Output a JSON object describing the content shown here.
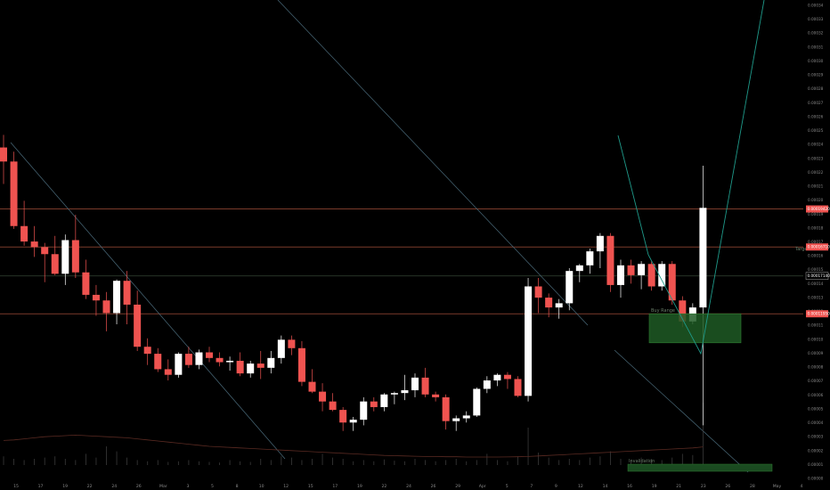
{
  "colors": {
    "background": "#000000",
    "up": "#ffffff",
    "down": "#ef5350",
    "hline": "#7a3b2a",
    "trendline": "#4a6a7a",
    "projection": "#1f9a8a",
    "box_fill": "#1e5b25",
    "box_border": "#2e7d32",
    "volume": "#3a3a3a",
    "ma": "#5a2a22"
  },
  "chart_data": {
    "type": "candlestick",
    "title": "",
    "xlabel": "",
    "ylabel": "",
    "x_ticks": [
      "15",
      "17",
      "19",
      "22",
      "24",
      "26",
      "Mar",
      "3",
      "5",
      "8",
      "10",
      "12",
      "15",
      "17",
      "19",
      "22",
      "24",
      "26",
      "29",
      "Apr",
      "5",
      "7",
      "9",
      "12",
      "14",
      "16",
      "19",
      "21",
      "23",
      "26",
      "28",
      "May",
      "4"
    ],
    "y_ticks": [
      "0.00034",
      "0.00033",
      "0.00032",
      "0.00031",
      "0.00030",
      "0.00029",
      "0.00028",
      "0.00027",
      "0.00026",
      "0.00025",
      "0.00024",
      "0.00023",
      "0.00022",
      "0.00021",
      "0.00020",
      "0.00019",
      "0.00018",
      "0.00017",
      "0.00016",
      "0.00015",
      "0.00014",
      "0.00013",
      "0.00012",
      "0.00011",
      "0.00010",
      "0.00009",
      "0.00008",
      "0.00007",
      "0.00006",
      "0.00005",
      "0.00004",
      "0.00003",
      "0.00002",
      "0.00001",
      "0.00000"
    ],
    "ylim": [
      -1e-06,
      0.0003431
    ],
    "price_tags": [
      {
        "value": "0.00019420",
        "color": "#ef5350"
      },
      {
        "value": "0.00016710",
        "color": "#ef5350"
      },
      {
        "value": "0.00011950",
        "color": "#ef5350"
      },
      {
        "value": "0.00017140",
        "color": "#ffffff"
      }
    ],
    "annotations": {
      "box_label": "Buy Range",
      "lower_label": "Invalidation",
      "side_label": "Target"
    },
    "candles": [
      {
        "o": 0.000238,
        "h": 0.000247,
        "l": 0.000212,
        "c": 0.000228
      },
      {
        "o": 0.000228,
        "h": 0.000235,
        "l": 0.00018,
        "c": 0.000182
      },
      {
        "o": 0.000182,
        "h": 0.0002,
        "l": 0.000168,
        "c": 0.000171
      },
      {
        "o": 0.000171,
        "h": 0.000182,
        "l": 0.00016,
        "c": 0.000167
      },
      {
        "o": 0.000167,
        "h": 0.00017,
        "l": 0.000142,
        "c": 0.000162
      },
      {
        "o": 0.000162,
        "h": 0.000175,
        "l": 0.000147,
        "c": 0.000148
      },
      {
        "o": 0.000148,
        "h": 0.000176,
        "l": 0.00014,
        "c": 0.000172
      },
      {
        "o": 0.000172,
        "h": 0.00019,
        "l": 0.000145,
        "c": 0.000149
      },
      {
        "o": 0.000149,
        "h": 0.000158,
        "l": 0.00013,
        "c": 0.000133
      },
      {
        "o": 0.000133,
        "h": 0.00014,
        "l": 0.000118,
        "c": 0.000129
      },
      {
        "o": 0.000129,
        "h": 0.000135,
        "l": 0.000107,
        "c": 0.00012
      },
      {
        "o": 0.00012,
        "h": 0.000144,
        "l": 0.000112,
        "c": 0.000143
      },
      {
        "o": 0.000143,
        "h": 0.00015,
        "l": 0.000112,
        "c": 0.000126
      },
      {
        "o": 0.000126,
        "h": 0.000136,
        "l": 9.3e-05,
        "c": 9.6e-05
      },
      {
        "o": 9.6e-05,
        "h": 0.000102,
        "l": 8.3e-05,
        "c": 9.1e-05
      },
      {
        "o": 9.1e-05,
        "h": 9.5e-05,
        "l": 7.8e-05,
        "c": 8e-05
      },
      {
        "o": 8e-05,
        "h": 8.7e-05,
        "l": 7.2e-05,
        "c": 7.6e-05
      },
      {
        "o": 7.6e-05,
        "h": 9.2e-05,
        "l": 7.4e-05,
        "c": 9.1e-05
      },
      {
        "o": 9.1e-05,
        "h": 9.6e-05,
        "l": 8.1e-05,
        "c": 8.3e-05
      },
      {
        "o": 8.3e-05,
        "h": 9.4e-05,
        "l": 8e-05,
        "c": 9.2e-05
      },
      {
        "o": 9.2e-05,
        "h": 9.6e-05,
        "l": 8.5e-05,
        "c": 8.8e-05
      },
      {
        "o": 8.8e-05,
        "h": 9.2e-05,
        "l": 8.2e-05,
        "c": 8.5e-05
      },
      {
        "o": 8.5e-05,
        "h": 8.9e-05,
        "l": 7.9e-05,
        "c": 8.6e-05
      },
      {
        "o": 8.6e-05,
        "h": 9.2e-05,
        "l": 7.5e-05,
        "c": 7.7e-05
      },
      {
        "o": 7.7e-05,
        "h": 8.6e-05,
        "l": 7.4e-05,
        "c": 8.4e-05
      },
      {
        "o": 8.4e-05,
        "h": 9.3e-05,
        "l": 7.3e-05,
        "c": 8.1e-05
      },
      {
        "o": 8.1e-05,
        "h": 9.3e-05,
        "l": 7.7e-05,
        "c": 8.8e-05
      },
      {
        "o": 8.8e-05,
        "h": 0.000104,
        "l": 8.4e-05,
        "c": 0.000101
      },
      {
        "o": 0.000101,
        "h": 0.000104,
        "l": 9e-05,
        "c": 9.5e-05
      },
      {
        "o": 9.5e-05,
        "h": 0.0001,
        "l": 6.8e-05,
        "c": 7.1e-05
      },
      {
        "o": 7.1e-05,
        "h": 8e-05,
        "l": 6.3e-05,
        "c": 6.4e-05
      },
      {
        "o": 6.4e-05,
        "h": 7e-05,
        "l": 5e-05,
        "c": 5.7e-05
      },
      {
        "o": 5.7e-05,
        "h": 6.3e-05,
        "l": 5e-05,
        "c": 5.1e-05
      },
      {
        "o": 5.1e-05,
        "h": 5.3e-05,
        "l": 3.6e-05,
        "c": 4.2e-05
      },
      {
        "o": 4.2e-05,
        "h": 4.6e-05,
        "l": 3.6e-05,
        "c": 4.4e-05
      },
      {
        "o": 4.4e-05,
        "h": 6e-05,
        "l": 4e-05,
        "c": 5.7e-05
      },
      {
        "o": 5.7e-05,
        "h": 6e-05,
        "l": 5e-05,
        "c": 5.3e-05
      },
      {
        "o": 5.3e-05,
        "h": 6.3e-05,
        "l": 5e-05,
        "c": 6.2e-05
      },
      {
        "o": 6.2e-05,
        "h": 6.4e-05,
        "l": 5.5e-05,
        "c": 6.3e-05
      },
      {
        "o": 6.3e-05,
        "h": 7.6e-05,
        "l": 5.8e-05,
        "c": 6.5e-05
      },
      {
        "o": 6.5e-05,
        "h": 7.7e-05,
        "l": 6e-05,
        "c": 7.4e-05
      },
      {
        "o": 7.4e-05,
        "h": 8.1e-05,
        "l": 6e-05,
        "c": 6.2e-05
      },
      {
        "o": 6.2e-05,
        "h": 6.4e-05,
        "l": 5.7e-05,
        "c": 6e-05
      },
      {
        "o": 6e-05,
        "h": 6.2e-05,
        "l": 3.7e-05,
        "c": 4.3e-05
      },
      {
        "o": 4.3e-05,
        "h": 4.7e-05,
        "l": 3.6e-05,
        "c": 4.5e-05
      },
      {
        "o": 4.5e-05,
        "h": 5e-05,
        "l": 4.2e-05,
        "c": 4.7e-05
      },
      {
        "o": 4.7e-05,
        "h": 6.7e-05,
        "l": 4.6e-05,
        "c": 6.6e-05
      },
      {
        "o": 6.6e-05,
        "h": 7.5e-05,
        "l": 6.3e-05,
        "c": 7.2e-05
      },
      {
        "o": 7.2e-05,
        "h": 7.7e-05,
        "l": 6.8e-05,
        "c": 7.6e-05
      },
      {
        "o": 7.6e-05,
        "h": 7.8e-05,
        "l": 6.6e-05,
        "c": 7.3e-05
      },
      {
        "o": 7.3e-05,
        "h": 7.5e-05,
        "l": 6e-05,
        "c": 6.1e-05
      },
      {
        "o": 6.1e-05,
        "h": 0.000145,
        "l": 5.7e-05,
        "c": 0.000139
      },
      {
        "o": 0.000139,
        "h": 0.000145,
        "l": 0.00012,
        "c": 0.000131
      },
      {
        "o": 0.000131,
        "h": 0.000134,
        "l": 0.000117,
        "c": 0.000124
      },
      {
        "o": 0.000124,
        "h": 0.00013,
        "l": 0.000116,
        "c": 0.000127
      },
      {
        "o": 0.000127,
        "h": 0.000152,
        "l": 0.000122,
        "c": 0.00015
      },
      {
        "o": 0.00015,
        "h": 0.000155,
        "l": 0.000142,
        "c": 0.000154
      },
      {
        "o": 0.000154,
        "h": 0.000166,
        "l": 0.000148,
        "c": 0.000164
      },
      {
        "o": 0.000164,
        "h": 0.000177,
        "l": 0.000152,
        "c": 0.000175
      },
      {
        "o": 0.000175,
        "h": 0.000177,
        "l": 0.000135,
        "c": 0.00014
      },
      {
        "o": 0.00014,
        "h": 0.000158,
        "l": 0.000131,
        "c": 0.000154
      },
      {
        "o": 0.000154,
        "h": 0.000158,
        "l": 0.000141,
        "c": 0.000147
      },
      {
        "o": 0.000147,
        "h": 0.000157,
        "l": 0.000137,
        "c": 0.000155
      },
      {
        "o": 0.000155,
        "h": 0.000157,
        "l": 0.000136,
        "c": 0.000139
      },
      {
        "o": 0.000139,
        "h": 0.000157,
        "l": 0.000136,
        "c": 0.000155
      },
      {
        "o": 0.000155,
        "h": 0.000157,
        "l": 0.000126,
        "c": 0.000129
      },
      {
        "o": 0.000129,
        "h": 0.000132,
        "l": 0.00011,
        "c": 0.000114
      },
      {
        "o": 0.000114,
        "h": 0.000127,
        "l": 0.000112,
        "c": 0.000124
      },
      {
        "o": 0.000124,
        "h": 0.000225,
        "l": 4e-05,
        "c": 0.000195
      }
    ],
    "volumes": [
      14,
      10,
      8,
      10,
      12,
      14,
      10,
      8,
      18,
      12,
      30,
      22,
      12,
      8,
      6,
      8,
      5,
      6,
      8,
      6,
      5,
      4,
      8,
      6,
      5,
      10,
      8,
      14,
      12,
      8,
      10,
      18,
      12,
      10,
      6,
      8,
      6,
      9,
      7,
      6,
      10,
      8,
      6,
      8,
      10,
      6,
      8,
      18,
      8,
      6,
      14,
      60,
      20,
      12,
      8,
      10,
      8,
      12,
      14,
      22,
      10,
      8,
      12,
      10,
      8,
      12,
      18,
      16,
      100
    ],
    "ma": [
      0.046,
      0.047,
      0.049,
      0.051,
      0.053,
      0.054,
      0.055,
      0.056,
      0.055,
      0.054,
      0.053,
      0.052,
      0.051,
      0.049,
      0.047,
      0.045,
      0.043,
      0.041,
      0.039,
      0.037,
      0.035,
      0.034,
      0.033,
      0.032,
      0.031,
      0.03,
      0.029,
      0.028,
      0.027,
      0.026,
      0.025,
      0.024,
      0.023,
      0.022,
      0.021,
      0.02,
      0.019,
      0.018,
      0.0175,
      0.017,
      0.0165,
      0.016,
      0.016,
      0.0155,
      0.0155,
      0.015,
      0.015,
      0.015,
      0.015,
      0.0152,
      0.0155,
      0.016,
      0.017,
      0.018,
      0.019,
      0.02,
      0.021,
      0.022,
      0.023,
      0.024,
      0.025,
      0.026,
      0.027,
      0.028,
      0.029,
      0.03,
      0.031,
      0.032,
      0.034
    ]
  }
}
